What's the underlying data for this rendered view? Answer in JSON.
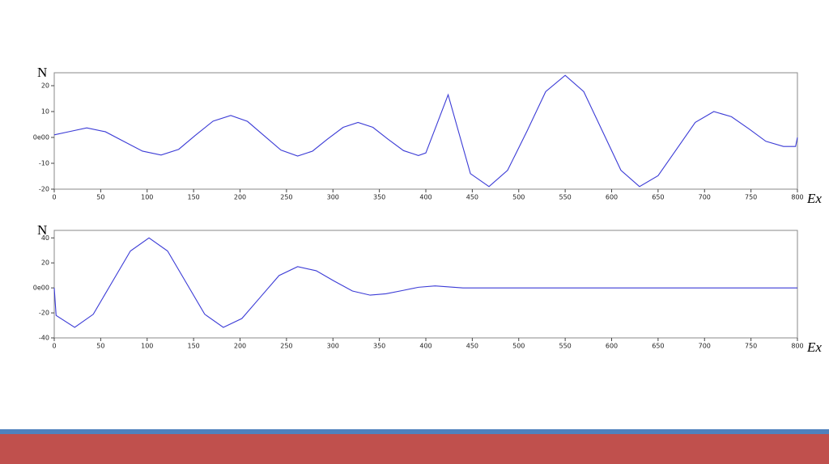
{
  "chart_data": [
    {
      "type": "line",
      "y_label": "N",
      "x_label": "Ex",
      "xlim": [
        0,
        800
      ],
      "ylim": [
        -20,
        25
      ],
      "xticks": [
        0,
        50,
        100,
        150,
        200,
        250,
        300,
        350,
        400,
        450,
        500,
        550,
        600,
        650,
        700,
        750,
        800
      ],
      "yticks": [
        -20,
        -10,
        {
          "value": 0,
          "label": "0e00"
        },
        10,
        20
      ],
      "series": [
        {
          "color": "#3b3bd6",
          "x": [
            0,
            17,
            35,
            55,
            75,
            95,
            115,
            134,
            152,
            171,
            190,
            208,
            226,
            244,
            262,
            278,
            294,
            311,
            327,
            343,
            359,
            376,
            392,
            400,
            412,
            424,
            436,
            448,
            468,
            488,
            509,
            529,
            550,
            570,
            590,
            610,
            630,
            650,
            670,
            690,
            710,
            729,
            748,
            766,
            785,
            798,
            800
          ],
          "values": [
            1,
            2.3,
            3.7,
            2.2,
            -1.55,
            -5.3,
            -6.8,
            -4.6,
            0.85,
            6.3,
            8.5,
            6.2,
            0.65,
            -4.9,
            -7.2,
            -5.3,
            -0.7,
            3.9,
            5.8,
            3.9,
            -0.6,
            -5.1,
            -7,
            -6,
            5.2,
            16.5,
            1.2,
            -14,
            -19,
            -12.7,
            2.5,
            17.7,
            24,
            17.7,
            2.5,
            -12.7,
            -19,
            -14.8,
            -4.5,
            5.8,
            10,
            8,
            3.25,
            -1.5,
            -3.5,
            -3.5,
            0
          ]
        }
      ]
    },
    {
      "type": "line",
      "y_label": "N",
      "x_label": "Ex",
      "xlim": [
        0,
        800
      ],
      "ylim": [
        -40,
        46
      ],
      "xticks": [
        0,
        50,
        100,
        150,
        200,
        250,
        300,
        350,
        400,
        450,
        500,
        550,
        600,
        650,
        700,
        750,
        800
      ],
      "yticks": [
        -40,
        -20,
        {
          "value": 0,
          "label": "0e00"
        },
        20,
        40
      ],
      "series": [
        {
          "color": "#3b3bd6",
          "x": [
            0,
            2,
            22,
            42,
            62,
            82,
            102,
            122,
            142,
            162,
            182,
            202,
            222,
            242,
            262,
            282,
            301,
            321,
            340,
            357,
            375,
            392,
            410,
            425,
            440,
            500,
            600,
            700,
            800
          ],
          "values": [
            0,
            -22,
            -31.6,
            -21.1,
            4.2,
            29.5,
            40,
            29.5,
            4.2,
            -21.1,
            -31.6,
            -24.5,
            -7.3,
            9.9,
            17,
            13.7,
            5.6,
            -2.5,
            -5.8,
            -4.7,
            -2.1,
            0.5,
            1.6,
            0.8,
            0,
            0,
            0,
            0,
            0
          ]
        }
      ]
    }
  ]
}
